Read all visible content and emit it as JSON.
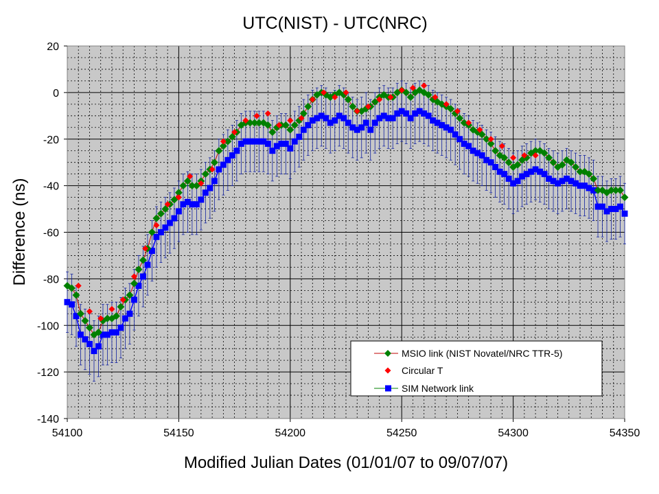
{
  "chart_data": {
    "type": "line",
    "title": "UTC(NIST) - UTC(NRC)",
    "xlabel": "Modified Julian Dates (01/01/07 to 09/07/07)",
    "ylabel": "Difference (ns)",
    "xlim": [
      54100,
      54350
    ],
    "ylim": [
      -140,
      20
    ],
    "x_ticks": [
      54100,
      54150,
      54200,
      54250,
      54300,
      54350
    ],
    "y_ticks": [
      20,
      0,
      -20,
      -40,
      -60,
      -80,
      -100,
      -120,
      -140
    ],
    "x_major_grid_step": 50,
    "x_minor_grid_step": 5,
    "y_major_grid_step": 20,
    "y_minor_grid_step": 5,
    "grid": true,
    "legend_position": "bottom-right",
    "series": [
      {
        "name": "MSIO link (NIST Novatel/NRC TTR-5)",
        "marker": "diamond",
        "color": "#008000",
        "line_color": "#c00000",
        "points": [
          [
            54100,
            -83
          ],
          [
            54102,
            -84
          ],
          [
            54104,
            -87
          ],
          [
            54106,
            -95
          ],
          [
            54108,
            -98
          ],
          [
            54110,
            -101
          ],
          [
            54112,
            -104
          ],
          [
            54114,
            -103
          ],
          [
            54116,
            -98
          ],
          [
            54118,
            -97
          ],
          [
            54120,
            -97
          ],
          [
            54122,
            -96
          ],
          [
            54124,
            -92
          ],
          [
            54126,
            -89
          ],
          [
            54128,
            -87
          ],
          [
            54130,
            -82
          ],
          [
            54132,
            -76
          ],
          [
            54134,
            -72
          ],
          [
            54136,
            -67
          ],
          [
            54138,
            -60
          ],
          [
            54140,
            -54
          ],
          [
            54142,
            -52
          ],
          [
            54144,
            -50
          ],
          [
            54146,
            -48
          ],
          [
            54148,
            -46
          ],
          [
            54150,
            -43
          ],
          [
            54152,
            -40
          ],
          [
            54154,
            -38
          ],
          [
            54156,
            -40
          ],
          [
            54158,
            -40
          ],
          [
            54160,
            -38
          ],
          [
            54162,
            -35
          ],
          [
            54164,
            -33
          ],
          [
            54166,
            -30
          ],
          [
            54168,
            -25
          ],
          [
            54170,
            -23
          ],
          [
            54172,
            -21
          ],
          [
            54174,
            -19
          ],
          [
            54176,
            -17
          ],
          [
            54178,
            -14
          ],
          [
            54180,
            -13
          ],
          [
            54182,
            -13
          ],
          [
            54184,
            -13
          ],
          [
            54186,
            -13
          ],
          [
            54188,
            -13
          ],
          [
            54190,
            -14
          ],
          [
            54192,
            -17
          ],
          [
            54194,
            -15
          ],
          [
            54196,
            -14
          ],
          [
            54198,
            -14
          ],
          [
            54200,
            -16
          ],
          [
            54202,
            -14
          ],
          [
            54204,
            -12
          ],
          [
            54206,
            -9
          ],
          [
            54208,
            -6
          ],
          [
            54210,
            -3
          ],
          [
            54212,
            -1
          ],
          [
            54214,
            0
          ],
          [
            54216,
            -1
          ],
          [
            54218,
            -2
          ],
          [
            54220,
            -1
          ],
          [
            54222,
            0
          ],
          [
            54224,
            -1
          ],
          [
            54226,
            -3
          ],
          [
            54228,
            -6
          ],
          [
            54230,
            -8
          ],
          [
            54232,
            -8
          ],
          [
            54234,
            -7
          ],
          [
            54236,
            -6
          ],
          [
            54238,
            -4
          ],
          [
            54240,
            -2
          ],
          [
            54242,
            -1
          ],
          [
            54244,
            -2
          ],
          [
            54246,
            -2
          ],
          [
            54248,
            0
          ],
          [
            54250,
            1
          ],
          [
            54252,
            0
          ],
          [
            54254,
            -2
          ],
          [
            54256,
            0
          ],
          [
            54258,
            1
          ],
          [
            54260,
            0
          ],
          [
            54262,
            -1
          ],
          [
            54264,
            -3
          ],
          [
            54266,
            -4
          ],
          [
            54268,
            -5
          ],
          [
            54270,
            -6
          ],
          [
            54272,
            -7
          ],
          [
            54274,
            -9
          ],
          [
            54276,
            -11
          ],
          [
            54278,
            -13
          ],
          [
            54280,
            -14
          ],
          [
            54282,
            -16
          ],
          [
            54284,
            -17
          ],
          [
            54286,
            -18
          ],
          [
            54288,
            -20
          ],
          [
            54290,
            -22
          ],
          [
            54292,
            -25
          ],
          [
            54294,
            -27
          ],
          [
            54296,
            -28
          ],
          [
            54298,
            -30
          ],
          [
            54300,
            -32
          ],
          [
            54302,
            -31
          ],
          [
            54304,
            -29
          ],
          [
            54306,
            -28
          ],
          [
            54308,
            -26
          ],
          [
            54310,
            -25
          ],
          [
            54312,
            -25
          ],
          [
            54314,
            -26
          ],
          [
            54316,
            -28
          ],
          [
            54318,
            -30
          ],
          [
            54320,
            -32
          ],
          [
            54322,
            -31
          ],
          [
            54324,
            -29
          ],
          [
            54326,
            -30
          ],
          [
            54328,
            -32
          ],
          [
            54330,
            -34
          ],
          [
            54332,
            -34
          ],
          [
            54334,
            -35
          ],
          [
            54336,
            -37
          ],
          [
            54338,
            -42
          ],
          [
            54340,
            -42
          ],
          [
            54342,
            -43
          ],
          [
            54344,
            -42
          ],
          [
            54346,
            -42
          ],
          [
            54348,
            -42
          ],
          [
            54350,
            -45
          ]
        ],
        "error_bar": 0
      },
      {
        "name": "Circular T",
        "marker": "diamond",
        "color": "#ff0000",
        "points": [
          [
            54105,
            -83
          ],
          [
            54110,
            -94
          ],
          [
            54115,
            -97
          ],
          [
            54120,
            -93
          ],
          [
            54125,
            -89
          ],
          [
            54130,
            -79
          ],
          [
            54135,
            -67
          ],
          [
            54140,
            -57
          ],
          [
            54145,
            -48
          ],
          [
            54150,
            -45
          ],
          [
            54155,
            -36
          ],
          [
            54160,
            -39
          ],
          [
            54165,
            -33
          ],
          [
            54170,
            -21
          ],
          [
            54175,
            -17
          ],
          [
            54180,
            -12
          ],
          [
            54185,
            -10
          ],
          [
            54190,
            -9
          ],
          [
            54195,
            -14
          ],
          [
            54200,
            -12
          ],
          [
            54205,
            -11
          ],
          [
            54210,
            -3
          ],
          [
            54215,
            0
          ],
          [
            54220,
            -2
          ],
          [
            54225,
            0
          ],
          [
            54230,
            -8
          ],
          [
            54235,
            -6
          ],
          [
            54240,
            -3
          ],
          [
            54245,
            -2
          ],
          [
            54250,
            1
          ],
          [
            54255,
            2
          ],
          [
            54260,
            3
          ],
          [
            54265,
            -2
          ],
          [
            54270,
            -5
          ],
          [
            54275,
            -8
          ],
          [
            54280,
            -13
          ],
          [
            54285,
            -16
          ],
          [
            54290,
            -20
          ],
          [
            54295,
            -23
          ],
          [
            54300,
            -28
          ],
          [
            54305,
            -27
          ],
          [
            54310,
            -27
          ]
        ]
      },
      {
        "name": "SIM Network link",
        "marker": "square",
        "color": "#0000ff",
        "points": [
          [
            54100,
            -90
          ],
          [
            54102,
            -91
          ],
          [
            54104,
            -96
          ],
          [
            54106,
            -104
          ],
          [
            54108,
            -106
          ],
          [
            54110,
            -108
          ],
          [
            54112,
            -111
          ],
          [
            54114,
            -109
          ],
          [
            54116,
            -104
          ],
          [
            54118,
            -104
          ],
          [
            54120,
            -103
          ],
          [
            54122,
            -103
          ],
          [
            54124,
            -101
          ],
          [
            54126,
            -97
          ],
          [
            54128,
            -95
          ],
          [
            54130,
            -89
          ],
          [
            54132,
            -83
          ],
          [
            54134,
            -79
          ],
          [
            54136,
            -74
          ],
          [
            54138,
            -68
          ],
          [
            54140,
            -62
          ],
          [
            54142,
            -60
          ],
          [
            54144,
            -58
          ],
          [
            54146,
            -56
          ],
          [
            54148,
            -54
          ],
          [
            54150,
            -51
          ],
          [
            54152,
            -48
          ],
          [
            54154,
            -47
          ],
          [
            54156,
            -48
          ],
          [
            54158,
            -48
          ],
          [
            54160,
            -46
          ],
          [
            54162,
            -43
          ],
          [
            54164,
            -41
          ],
          [
            54166,
            -38
          ],
          [
            54168,
            -33
          ],
          [
            54170,
            -31
          ],
          [
            54172,
            -29
          ],
          [
            54174,
            -27
          ],
          [
            54176,
            -25
          ],
          [
            54178,
            -22
          ],
          [
            54180,
            -21
          ],
          [
            54182,
            -21
          ],
          [
            54184,
            -21
          ],
          [
            54186,
            -21
          ],
          [
            54188,
            -21
          ],
          [
            54190,
            -22
          ],
          [
            54192,
            -25
          ],
          [
            54194,
            -23
          ],
          [
            54196,
            -22
          ],
          [
            54198,
            -22
          ],
          [
            54200,
            -24
          ],
          [
            54202,
            -21
          ],
          [
            54204,
            -19
          ],
          [
            54206,
            -16
          ],
          [
            54208,
            -14
          ],
          [
            54210,
            -12
          ],
          [
            54212,
            -11
          ],
          [
            54214,
            -10
          ],
          [
            54216,
            -11
          ],
          [
            54218,
            -13
          ],
          [
            54220,
            -12
          ],
          [
            54222,
            -10
          ],
          [
            54224,
            -11
          ],
          [
            54226,
            -13
          ],
          [
            54228,
            -15
          ],
          [
            54230,
            -16
          ],
          [
            54232,
            -15
          ],
          [
            54234,
            -13
          ],
          [
            54236,
            -16
          ],
          [
            54238,
            -13
          ],
          [
            54240,
            -11
          ],
          [
            54242,
            -10
          ],
          [
            54244,
            -11
          ],
          [
            54246,
            -11
          ],
          [
            54248,
            -9
          ],
          [
            54250,
            -8
          ],
          [
            54252,
            -9
          ],
          [
            54254,
            -11
          ],
          [
            54256,
            -9
          ],
          [
            54258,
            -8
          ],
          [
            54260,
            -9
          ],
          [
            54262,
            -10
          ],
          [
            54264,
            -12
          ],
          [
            54266,
            -13
          ],
          [
            54268,
            -14
          ],
          [
            54270,
            -15
          ],
          [
            54272,
            -16
          ],
          [
            54274,
            -18
          ],
          [
            54276,
            -20
          ],
          [
            54278,
            -22
          ],
          [
            54280,
            -23
          ],
          [
            54282,
            -25
          ],
          [
            54284,
            -26
          ],
          [
            54286,
            -27
          ],
          [
            54288,
            -29
          ],
          [
            54290,
            -30
          ],
          [
            54292,
            -32
          ],
          [
            54294,
            -34
          ],
          [
            54296,
            -35
          ],
          [
            54298,
            -37
          ],
          [
            54300,
            -39
          ],
          [
            54302,
            -38
          ],
          [
            54304,
            -36
          ],
          [
            54306,
            -35
          ],
          [
            54308,
            -34
          ],
          [
            54310,
            -33
          ],
          [
            54312,
            -34
          ],
          [
            54314,
            -35
          ],
          [
            54316,
            -37
          ],
          [
            54318,
            -38
          ],
          [
            54320,
            -39
          ],
          [
            54322,
            -38
          ],
          [
            54324,
            -37
          ],
          [
            54326,
            -38
          ],
          [
            54328,
            -39
          ],
          [
            54330,
            -40
          ],
          [
            54332,
            -40
          ],
          [
            54334,
            -41
          ],
          [
            54336,
            -42
          ],
          [
            54338,
            -49
          ],
          [
            54340,
            -49
          ],
          [
            54342,
            -51
          ],
          [
            54344,
            -50
          ],
          [
            54346,
            -50
          ],
          [
            54348,
            -49
          ],
          [
            54350,
            -52
          ]
        ],
        "error_bar": 13
      }
    ]
  }
}
